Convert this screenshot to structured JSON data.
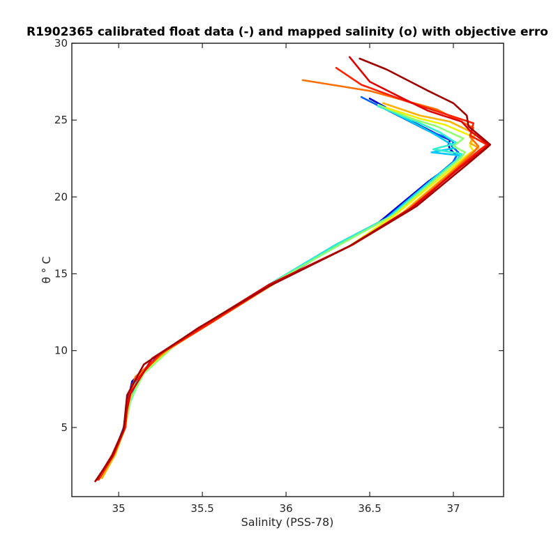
{
  "chart_data": {
    "type": "line",
    "title": "R1902365 calibrated float data (-) and mapped salinity (o) with objective erro",
    "xlabel": "Salinity (PSS-78)",
    "ylabel": "θ ° C",
    "xlim": [
      34.72,
      37.3
    ],
    "ylim": [
      0.5,
      30
    ],
    "xticks": [
      35,
      35.5,
      36,
      36.5,
      37
    ],
    "xtick_labels": [
      "35",
      "35.5",
      "36",
      "36.5",
      "37"
    ],
    "yticks": [
      5,
      10,
      15,
      20,
      25,
      30
    ],
    "ytick_labels": [
      "5",
      "10",
      "15",
      "20",
      "25",
      "30"
    ],
    "grid": false,
    "legend": "none",
    "colormap": "jet (profile sequence, blue = early, dark red = late)",
    "series": [
      {
        "color": "#0000d0",
        "x": [
          34.9,
          34.97,
          35.03,
          35.05,
          35.08,
          35.25,
          35.55,
          35.9,
          36.3,
          36.55,
          36.85,
          36.99,
          37.02,
          36.98,
          36.97,
          36.98,
          36.9,
          36.7,
          36.5
        ],
        "y": [
          1.8,
          3.3,
          5.0,
          6.5,
          8.0,
          9.8,
          11.8,
          14.2,
          16.8,
          18.3,
          21.0,
          22.1,
          22.7,
          23.1,
          23.4,
          23.7,
          24.1,
          25.2,
          26.4
        ]
      },
      {
        "color": "#0060ff",
        "x": [
          34.9,
          34.97,
          35.03,
          35.06,
          35.1,
          35.27,
          35.55,
          35.9,
          36.3,
          36.6,
          36.87,
          37.0,
          37.03,
          36.99,
          37.0,
          36.95,
          36.85,
          36.65,
          36.45
        ],
        "y": [
          1.7,
          3.2,
          5.0,
          6.6,
          8.2,
          9.9,
          11.9,
          14.3,
          16.9,
          18.6,
          21.1,
          22.3,
          22.9,
          23.3,
          23.6,
          23.9,
          24.3,
          25.4,
          26.5
        ]
      },
      {
        "color": "#00c8ff",
        "x": [
          34.9,
          34.97,
          35.04,
          35.06,
          35.12,
          35.28,
          35.55,
          35.9,
          36.3,
          36.6,
          36.88,
          37.02,
          37.04,
          36.87,
          37.02,
          36.9,
          36.82,
          36.62
        ],
        "y": [
          1.8,
          3.3,
          5.1,
          6.7,
          8.3,
          10.0,
          11.9,
          14.3,
          16.9,
          18.6,
          21.2,
          22.4,
          22.7,
          22.9,
          23.2,
          24.0,
          24.5,
          25.6
        ]
      },
      {
        "color": "#30f0d0",
        "x": [
          34.9,
          34.98,
          35.04,
          35.07,
          35.14,
          35.3,
          35.56,
          35.9,
          36.32,
          36.62,
          36.9,
          37.03,
          37.05,
          36.88,
          37.02,
          36.92,
          36.8,
          36.55
        ],
        "y": [
          1.8,
          3.3,
          5.1,
          6.7,
          8.4,
          10.1,
          12.0,
          14.3,
          17.0,
          18.7,
          21.3,
          22.5,
          22.8,
          23.1,
          23.5,
          24.2,
          24.8,
          25.9
        ]
      },
      {
        "color": "#90ff70",
        "x": [
          34.9,
          34.98,
          35.04,
          35.07,
          35.15,
          35.32,
          35.57,
          35.92,
          36.34,
          36.64,
          36.92,
          37.05,
          37.07,
          37.0,
          37.06,
          36.9,
          36.75,
          36.55
        ],
        "y": [
          1.7,
          3.2,
          5.0,
          6.8,
          8.5,
          10.2,
          12.1,
          14.4,
          17.0,
          18.8,
          21.4,
          22.6,
          22.9,
          23.3,
          23.8,
          24.6,
          25.1,
          26.0
        ]
      },
      {
        "color": "#f0f000",
        "x": [
          34.9,
          34.98,
          35.04,
          35.05,
          35.1,
          35.3,
          35.58,
          35.95,
          36.38,
          36.66,
          36.95,
          37.08,
          37.12,
          37.1,
          37.12,
          36.95,
          36.8,
          36.6
        ],
        "y": [
          1.7,
          3.3,
          5.2,
          6.3,
          8.2,
          10.1,
          12.0,
          14.5,
          16.8,
          18.9,
          21.5,
          22.7,
          23.0,
          23.3,
          23.9,
          24.7,
          25.1,
          25.8
        ]
      },
      {
        "color": "#ffb000",
        "x": [
          34.9,
          34.98,
          35.04,
          35.06,
          35.1,
          35.3,
          35.58,
          35.95,
          36.4,
          36.7,
          36.98,
          37.1,
          37.15,
          37.1,
          37.13,
          36.98,
          36.8,
          36.58
        ],
        "y": [
          1.7,
          3.3,
          5.1,
          6.6,
          8.3,
          10.1,
          12.0,
          14.5,
          16.9,
          19.0,
          21.6,
          22.8,
          23.2,
          23.5,
          24.1,
          24.9,
          25.3,
          26.1
        ]
      },
      {
        "color": "#ff7000",
        "x": [
          34.88,
          34.97,
          35.04,
          35.05,
          35.1,
          35.28,
          35.57,
          35.95,
          36.4,
          36.72,
          37.0,
          37.12,
          37.15,
          37.1,
          37.12,
          36.9,
          36.5,
          36.1
        ],
        "y": [
          1.6,
          3.3,
          5.0,
          6.5,
          8.3,
          10.0,
          12.0,
          14.5,
          16.9,
          19.1,
          21.7,
          22.9,
          23.3,
          23.9,
          24.5,
          25.7,
          26.9,
          27.6
        ]
      },
      {
        "color": "#ff2000",
        "x": [
          34.88,
          34.97,
          35.04,
          35.05,
          35.08,
          35.25,
          35.55,
          35.93,
          36.4,
          36.75,
          37.02,
          37.15,
          37.2,
          37.1,
          37.12,
          36.95,
          36.7,
          36.45,
          36.3
        ],
        "y": [
          1.6,
          3.2,
          5.0,
          6.4,
          7.8,
          9.8,
          11.8,
          14.4,
          16.9,
          19.2,
          21.8,
          23.0,
          23.4,
          24.0,
          24.8,
          25.4,
          26.3,
          27.3,
          28.4
        ]
      },
      {
        "color": "#e00000",
        "x": [
          34.87,
          34.96,
          35.03,
          35.05,
          35.07,
          35.2,
          35.5,
          35.9,
          36.38,
          36.75,
          37.05,
          37.18,
          37.21,
          37.1,
          37.05,
          36.85,
          36.7,
          36.5,
          36.38
        ],
        "y": [
          1.6,
          3.2,
          4.9,
          6.2,
          7.2,
          9.5,
          11.6,
          14.3,
          16.8,
          19.3,
          22.0,
          23.1,
          23.4,
          24.3,
          24.9,
          25.6,
          26.4,
          27.5,
          29.1
        ]
      },
      {
        "color": "#a00000",
        "x": [
          34.86,
          34.96,
          35.03,
          35.04,
          35.05,
          35.15,
          35.48,
          35.9,
          36.38,
          36.78,
          37.08,
          37.2,
          37.22,
          37.09,
          37.08,
          37.0,
          36.85,
          36.6,
          36.44
        ],
        "y": [
          1.5,
          3.1,
          4.9,
          6.0,
          7.1,
          9.1,
          11.5,
          14.2,
          16.8,
          19.4,
          22.1,
          23.2,
          23.4,
          24.6,
          25.3,
          26.1,
          26.9,
          28.3,
          29.0
        ]
      }
    ]
  }
}
